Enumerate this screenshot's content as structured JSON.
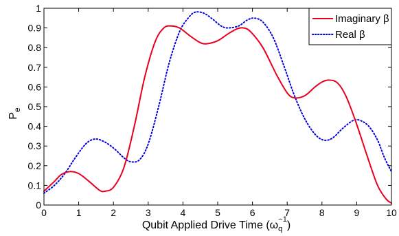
{
  "chart_data": {
    "type": "line",
    "xlabel": "Qubit Applied Drive Time (ω",
    "xlabel_sub": "q",
    "xlabel_sup": "−1",
    "xlabel_close": ")",
    "ylabel": "P",
    "ylabel_sub": "e",
    "xlim": [
      0,
      10
    ],
    "ylim": [
      0,
      1
    ],
    "x_ticks": [
      "0",
      "1",
      "2",
      "3",
      "4",
      "5",
      "6",
      "7",
      "8",
      "9",
      "10"
    ],
    "y_ticks": [
      "0",
      "0.1",
      "0.2",
      "0.3",
      "0.4",
      "0.5",
      "0.6",
      "0.7",
      "0.8",
      "0.9",
      "1"
    ],
    "grid": false,
    "legend_position": "top-right",
    "series": [
      {
        "name": "Imaginary β",
        "color": "#e8001c",
        "style": "solid",
        "points": [
          [
            0,
            0.07
          ],
          [
            0.3,
            0.12
          ],
          [
            0.5,
            0.155
          ],
          [
            0.75,
            0.17
          ],
          [
            1.0,
            0.16
          ],
          [
            1.3,
            0.12
          ],
          [
            1.6,
            0.075
          ],
          [
            1.75,
            0.07
          ],
          [
            2.0,
            0.09
          ],
          [
            2.3,
            0.19
          ],
          [
            2.6,
            0.4
          ],
          [
            2.9,
            0.65
          ],
          [
            3.2,
            0.83
          ],
          [
            3.45,
            0.9
          ],
          [
            3.65,
            0.91
          ],
          [
            3.9,
            0.9
          ],
          [
            4.2,
            0.86
          ],
          [
            4.5,
            0.825
          ],
          [
            4.7,
            0.82
          ],
          [
            5.0,
            0.835
          ],
          [
            5.3,
            0.87
          ],
          [
            5.55,
            0.895
          ],
          [
            5.75,
            0.9
          ],
          [
            5.95,
            0.88
          ],
          [
            6.3,
            0.8
          ],
          [
            6.7,
            0.66
          ],
          [
            7.0,
            0.57
          ],
          [
            7.2,
            0.545
          ],
          [
            7.5,
            0.555
          ],
          [
            7.8,
            0.6
          ],
          [
            8.0,
            0.625
          ],
          [
            8.2,
            0.635
          ],
          [
            8.45,
            0.62
          ],
          [
            8.7,
            0.55
          ],
          [
            9.0,
            0.41
          ],
          [
            9.3,
            0.25
          ],
          [
            9.6,
            0.1
          ],
          [
            9.85,
            0.03
          ],
          [
            10,
            0.01
          ]
        ]
      },
      {
        "name": "Real β",
        "color": "#0000e0",
        "style": "dotted",
        "points": [
          [
            0,
            0.06
          ],
          [
            0.3,
            0.1
          ],
          [
            0.6,
            0.16
          ],
          [
            0.9,
            0.24
          ],
          [
            1.2,
            0.31
          ],
          [
            1.45,
            0.335
          ],
          [
            1.7,
            0.325
          ],
          [
            2.0,
            0.29
          ],
          [
            2.3,
            0.24
          ],
          [
            2.5,
            0.22
          ],
          [
            2.75,
            0.23
          ],
          [
            3.0,
            0.31
          ],
          [
            3.3,
            0.5
          ],
          [
            3.6,
            0.72
          ],
          [
            3.9,
            0.88
          ],
          [
            4.15,
            0.95
          ],
          [
            4.35,
            0.98
          ],
          [
            4.6,
            0.975
          ],
          [
            4.85,
            0.945
          ],
          [
            5.1,
            0.91
          ],
          [
            5.3,
            0.9
          ],
          [
            5.6,
            0.91
          ],
          [
            5.85,
            0.94
          ],
          [
            6.05,
            0.95
          ],
          [
            6.3,
            0.93
          ],
          [
            6.6,
            0.85
          ],
          [
            6.9,
            0.71
          ],
          [
            7.2,
            0.56
          ],
          [
            7.5,
            0.44
          ],
          [
            7.8,
            0.36
          ],
          [
            8.05,
            0.33
          ],
          [
            8.3,
            0.34
          ],
          [
            8.6,
            0.39
          ],
          [
            8.9,
            0.43
          ],
          [
            9.1,
            0.43
          ],
          [
            9.35,
            0.4
          ],
          [
            9.6,
            0.33
          ],
          [
            9.8,
            0.24
          ],
          [
            10,
            0.17
          ]
        ]
      }
    ]
  }
}
